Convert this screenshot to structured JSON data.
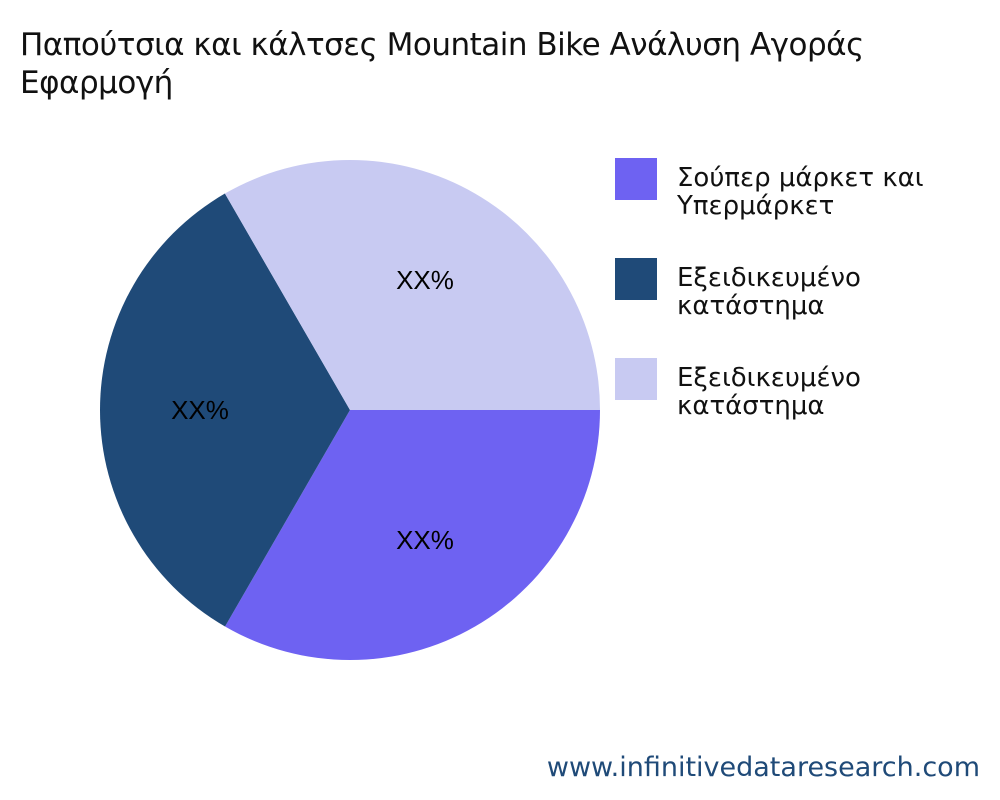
{
  "chart_data": {
    "type": "pie",
    "title": "Παπούτσια και κάλτσες Mountain Bike Ανάλυση Αγοράς Εφαρμογή",
    "title_lines": [
      "Παπούτσια και κάλτσες Mountain Bike Ανάλυση Αγοράς",
      "Εφαρμογή"
    ],
    "legend_position": "right",
    "slices": [
      {
        "name": "Σούπερ μάρκετ και Υπερμάρκετ",
        "value": 33.33,
        "label": "XX%",
        "color": "#6e62f2"
      },
      {
        "name": "Εξειδικευμένο κατάστημα",
        "value": 33.33,
        "label": "XX%",
        "color": "#1f4a78"
      },
      {
        "name": "Εξειδικευμένο κατάστημα",
        "value": 33.34,
        "label": "XX%",
        "color": "#c8caf2"
      }
    ]
  },
  "footer": {
    "watermark": "www.infinitivedataresearch.com"
  }
}
